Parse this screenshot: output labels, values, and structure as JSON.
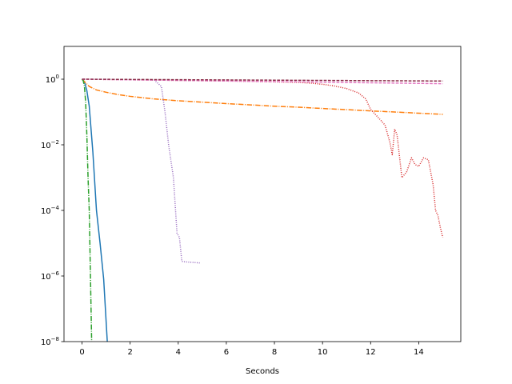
{
  "chart_data": {
    "type": "line",
    "title": "",
    "xlabel": "Seconds",
    "ylabel": "",
    "xscale": "linear",
    "yscale": "log",
    "xlim": [
      -0.75,
      15.75
    ],
    "ylim": [
      1e-08,
      10
    ],
    "xticks": [
      0,
      2,
      4,
      6,
      8,
      10,
      12,
      14
    ],
    "yticks": [
      1e-08,
      1e-06,
      0.0001,
      0.01,
      1
    ],
    "ytick_labels": [
      {
        "base": "10",
        "exp": "−8"
      },
      {
        "base": "10",
        "exp": "−6"
      },
      {
        "base": "10",
        "exp": "−4"
      },
      {
        "base": "10",
        "exp": "−2"
      },
      {
        "base": "10",
        "exp": "0"
      }
    ],
    "grid": false,
    "legend": "none",
    "series": [
      {
        "color": "#1f77b4",
        "style": "solid",
        "x": [
          0,
          0.1,
          0.2,
          0.3,
          0.45,
          0.6,
          0.75,
          0.9,
          1.05
        ],
        "y": [
          1.0,
          0.85,
          0.45,
          0.15,
          0.006,
          0.0001,
          1e-05,
          8e-07,
          1e-08
        ]
      },
      {
        "color": "#ff7f0e",
        "style": "dashdot",
        "x": [
          0,
          0.3,
          0.6,
          1,
          1.5,
          2,
          3,
          4,
          5,
          6,
          7,
          8,
          9,
          10,
          11,
          12,
          13,
          14,
          15
        ],
        "y": [
          1.0,
          0.6,
          0.47,
          0.4,
          0.34,
          0.3,
          0.25,
          0.22,
          0.2,
          0.18,
          0.165,
          0.15,
          0.14,
          0.128,
          0.118,
          0.108,
          0.1,
          0.092,
          0.085
        ]
      },
      {
        "color": "#2ca02c",
        "style": "dashdot",
        "x": [
          0,
          0.05,
          0.1,
          0.15,
          0.2,
          0.25,
          0.3,
          0.35,
          0.4
        ],
        "y": [
          1.0,
          0.9,
          0.6,
          0.2,
          0.02,
          0.001,
          0.0001,
          1e-06,
          1e-08
        ]
      },
      {
        "color": "#d62728",
        "style": "dotted",
        "x": [
          0,
          1,
          2,
          3,
          4,
          5,
          6,
          7,
          8,
          9,
          9.5,
          10,
          10.5,
          11,
          11.5,
          11.8,
          12,
          12.3,
          12.6,
          12.8,
          12.9,
          13.0,
          13.1,
          13.3,
          13.5,
          13.7,
          13.85,
          14.0,
          14.2,
          14.4,
          14.6,
          14.7,
          14.8,
          14.9,
          15.0
        ],
        "y": [
          1.0,
          0.98,
          0.96,
          0.94,
          0.92,
          0.9,
          0.88,
          0.86,
          0.83,
          0.8,
          0.76,
          0.7,
          0.62,
          0.52,
          0.38,
          0.25,
          0.12,
          0.07,
          0.04,
          0.012,
          0.005,
          0.03,
          0.02,
          0.001,
          0.0015,
          0.004,
          0.0025,
          0.0022,
          0.004,
          0.0035,
          0.0006,
          0.0001,
          7e-05,
          3e-05,
          1.5e-05
        ]
      },
      {
        "color": "#9467bd",
        "style": "dotted",
        "x": [
          0,
          1,
          2,
          2.5,
          3,
          3.3,
          3.45,
          3.6,
          3.8,
          3.95,
          4.05,
          4.15,
          4.3,
          4.6,
          4.9
        ],
        "y": [
          1.0,
          0.99,
          0.97,
          0.96,
          0.95,
          0.6,
          0.1,
          0.01,
          0.001,
          2e-05,
          1.5e-05,
          2.8e-06,
          2.7e-06,
          2.6e-06,
          2.5e-06
        ]
      },
      {
        "color": "#e377c2",
        "style": "dashed",
        "x": [
          0,
          15
        ],
        "y": [
          1.0,
          0.73
        ]
      },
      {
        "color": "#8c2d4a",
        "style": "dashed",
        "x": [
          0,
          15
        ],
        "y": [
          1.0,
          0.88
        ]
      }
    ]
  }
}
